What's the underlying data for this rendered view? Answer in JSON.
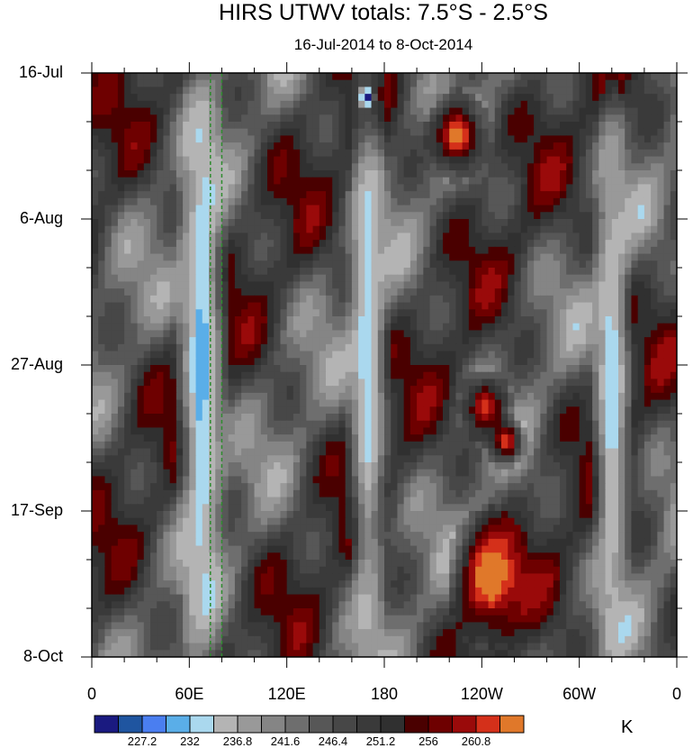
{
  "chart_data": {
    "type": "heatmap",
    "title": "HIRS UTWV totals: 7.5°S - 2.5°S",
    "subtitle": "16-Jul-2014 to 8-Oct-2014",
    "x_tick_labels": [
      "0",
      "60E",
      "120E",
      "180",
      "120W",
      "60W",
      "0"
    ],
    "x_ticks_deg": [
      0,
      60,
      120,
      180,
      240,
      300,
      360
    ],
    "y_tick_labels": [
      "16-Jul",
      "6-Aug",
      "27-Aug",
      "17-Sep",
      "8-Oct"
    ],
    "y_ticks_day": [
      0,
      21,
      42,
      63,
      84
    ],
    "colorbar": {
      "unit": "K",
      "labels": [
        "227.2",
        "232",
        "236.8",
        "241.6",
        "246.4",
        "251.2",
        "256",
        "260.8"
      ],
      "levels": [
        225.6,
        227.2,
        228.8,
        230.4,
        232,
        233.6,
        235.2,
        236.8,
        238.4,
        240,
        241.6,
        243.2,
        244.8,
        246.4,
        248,
        249.6,
        251.2,
        252.8,
        254.4,
        256,
        257.6,
        259.2,
        260.8,
        262.4
      ],
      "colors": [
        "#1a1a80",
        "#1f55a0",
        "#4a7ef0",
        "#5aaee8",
        "#aad8ee",
        "#b4b4b4",
        "#999999",
        "#858585",
        "#6e6e6e",
        "#575757",
        "#474747",
        "#3a3a3a",
        "#303030",
        "#4a0000",
        "#6e0000",
        "#9a0a0a",
        "#d4301a",
        "#e0782a"
      ]
    },
    "reference_lines_deg": [
      73,
      80
    ],
    "reference_line_color": "#2e8b2e",
    "features": [
      {
        "lon": 55,
        "day": 0,
        "lon_width": 25,
        "days": 84,
        "value": 236,
        "desc": "moist band"
      },
      {
        "lon": 160,
        "day": 0,
        "lon_width": 20,
        "days": 84,
        "value": 237
      },
      {
        "lon": 310,
        "day": 10,
        "lon_width": 20,
        "days": 74,
        "value": 237
      },
      {
        "lon": 210,
        "day": 4,
        "lon_width": 30,
        "days": 10,
        "value": 259
      },
      {
        "lon": 225,
        "day": 65,
        "lon_width": 40,
        "days": 15,
        "value": 260
      },
      {
        "lon": 230,
        "day": 44,
        "lon_width": 25,
        "days": 8,
        "value": 257
      },
      {
        "lon": 245,
        "day": 50,
        "lon_width": 20,
        "days": 6,
        "value": 257
      },
      {
        "lon": 165,
        "day": 2,
        "lon_width": 8,
        "days": 3,
        "value": 229
      }
    ]
  }
}
